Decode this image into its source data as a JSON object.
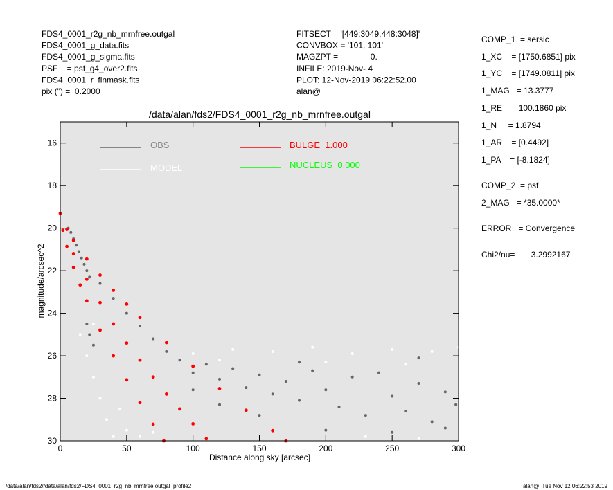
{
  "header": {
    "left": [
      "FDS4_0001_r2g_nb_mrnfree.outgal",
      "FDS4_0001_g_data.fits",
      "FDS4_0001_g_sigma.fits",
      "PSF    = psf_g4_over2.fits",
      "FDS4_0001_r_finmask.fits",
      "pix (\") =  0.2000"
    ],
    "middle": [
      "FITSECT = '[449:3049,448:3048]'",
      "CONVBOX = '101, 101'",
      "MAGZPT =              0.",
      "INFILE: 2019-Nov- 4",
      "PLOT: 12-Nov-2019 06:22:52.00",
      "alan@"
    ],
    "right": [
      "COMP_1  = sersic",
      "1_XC    = [1750.6851] pix",
      "1_YC    = [1749.0811] pix",
      "1_MAG   = 13.3777",
      "1_RE    = 100.1860 pix",
      "1_N     = 1.8794",
      "1_AR    = [0.4492]",
      "1_PA    = [-8.1824]",
      "COMP_2  = psf",
      "2_MAG   = *35.0000*",
      "ERROR   = Convergence",
      "Chi2/nu=       3.2992167"
    ]
  },
  "footer": {
    "left": "/data/alan/fds2//data/alan/fds2/FDS4_0001_r2g_nb_mrnfree.outgal_profile2",
    "right": "alan@  Tue Nov 12 06:22:53 2019"
  },
  "chart_data": {
    "type": "scatter",
    "title": "/data/alan/fds2/FDS4_0001_r2g_nb_mrnfree.outgal",
    "xlabel": "Distance along sky [arcsec]",
    "ylabel": "magnitude/arcsec^2",
    "xlim": [
      0,
      300
    ],
    "ylim": [
      15,
      30
    ],
    "y_inverted": true,
    "xticks": [
      0,
      50,
      100,
      150,
      200,
      250,
      300
    ],
    "yticks": [
      16,
      18,
      20,
      22,
      24,
      26,
      28,
      30
    ],
    "background": "#e5e5e5",
    "series": [
      {
        "name": "OBS",
        "color": "#666666",
        "label_color": "#8c8c8c",
        "x": [
          6,
          8,
          10,
          12,
          14,
          16,
          18,
          20,
          22,
          30,
          40,
          50,
          60,
          70,
          80,
          90,
          100,
          110,
          120,
          130,
          140,
          150,
          160,
          170,
          180,
          190,
          200,
          210,
          220,
          230,
          240,
          250,
          260,
          270,
          280,
          290,
          298,
          150,
          200,
          250,
          290,
          120,
          100,
          180,
          270,
          20,
          22,
          25,
          60
        ],
        "y": [
          20.0,
          20.2,
          20.5,
          20.8,
          21.1,
          21.4,
          21.7,
          22.0,
          22.3,
          22.6,
          23.3,
          24.0,
          24.6,
          25.2,
          25.8,
          26.2,
          26.8,
          26.4,
          27.1,
          26.6,
          27.5,
          26.9,
          27.8,
          27.2,
          28.1,
          26.7,
          27.6,
          28.4,
          27.0,
          28.8,
          26.8,
          27.9,
          28.6,
          27.3,
          29.1,
          27.7,
          28.3,
          28.8,
          29.5,
          29.6,
          29.4,
          28.3,
          27.6,
          26.3,
          26.1,
          24.5,
          25.0,
          25.5,
          24.2
        ]
      },
      {
        "name": "MODEL",
        "color": "#ffffff",
        "label_color": "#ffffff",
        "x": [
          15,
          20,
          25,
          30,
          35,
          40,
          25,
          45,
          50,
          60,
          70,
          100,
          130,
          160,
          190,
          220,
          250,
          280,
          300,
          120,
          200,
          260,
          230,
          270
        ],
        "y": [
          25.0,
          26.0,
          27.0,
          28.0,
          29.0,
          29.8,
          24.5,
          28.5,
          29.5,
          29.8,
          29.6,
          25.9,
          25.7,
          25.8,
          25.6,
          25.9,
          25.7,
          25.8,
          25.6,
          26.2,
          26.3,
          26.4,
          29.8,
          29.9
        ]
      },
      {
        "name": "BULGE  1.000",
        "color": "#ff0000",
        "label_color": "#ff0000",
        "x": [
          0,
          2,
          5,
          10,
          15,
          20,
          30,
          40,
          50,
          60,
          70,
          78,
          5,
          10,
          20,
          30,
          40,
          50,
          60,
          80,
          100,
          120,
          140,
          160,
          170,
          10,
          20,
          30,
          40,
          50,
          60,
          70,
          80,
          90,
          100,
          110
        ],
        "y": [
          19.3,
          20.1,
          20.86,
          21.84,
          22.67,
          23.42,
          24.79,
          26.0,
          27.13,
          28.2,
          29.22,
          30.0,
          20.06,
          20.58,
          21.45,
          22.21,
          22.92,
          23.57,
          24.2,
          25.38,
          26.49,
          27.54,
          28.56,
          29.52,
          30.0,
          21.2,
          22.4,
          23.5,
          24.5,
          25.4,
          26.2,
          27.0,
          27.8,
          28.5,
          29.2,
          29.9
        ]
      },
      {
        "name": "NUCLEUS  0.000",
        "color": "#00ff00",
        "label_color": "#00ff00",
        "x": [],
        "y": []
      }
    ]
  }
}
